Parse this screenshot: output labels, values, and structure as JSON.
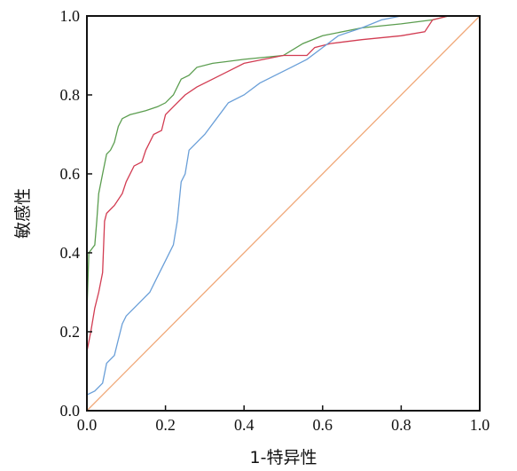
{
  "chart_data": {
    "type": "line",
    "xlabel": "1-特异性",
    "ylabel": "敏感性",
    "xlim": [
      0,
      1
    ],
    "ylim": [
      0,
      1
    ],
    "xticks": [
      "0.0",
      "0.2",
      "0.4",
      "0.6",
      "0.8",
      "1.0"
    ],
    "yticks": [
      "0.0",
      "0.2",
      "0.4",
      "0.6",
      "0.8",
      "1.0"
    ],
    "grid": false,
    "series": [
      {
        "color": "#5b9d4f",
        "points": [
          [
            0,
            0
          ],
          [
            0,
            0.25
          ],
          [
            0.005,
            0.4
          ],
          [
            0.02,
            0.42
          ],
          [
            0.025,
            0.48
          ],
          [
            0.03,
            0.55
          ],
          [
            0.04,
            0.6
          ],
          [
            0.05,
            0.65
          ],
          [
            0.06,
            0.66
          ],
          [
            0.07,
            0.68
          ],
          [
            0.08,
            0.72
          ],
          [
            0.09,
            0.74
          ],
          [
            0.11,
            0.75
          ],
          [
            0.15,
            0.76
          ],
          [
            0.18,
            0.77
          ],
          [
            0.2,
            0.78
          ],
          [
            0.22,
            0.8
          ],
          [
            0.24,
            0.84
          ],
          [
            0.26,
            0.85
          ],
          [
            0.28,
            0.87
          ],
          [
            0.32,
            0.88
          ],
          [
            0.4,
            0.89
          ],
          [
            0.5,
            0.9
          ],
          [
            0.55,
            0.93
          ],
          [
            0.6,
            0.95
          ],
          [
            0.7,
            0.97
          ],
          [
            0.8,
            0.98
          ],
          [
            0.88,
            0.99
          ],
          [
            0.92,
            1.0
          ],
          [
            1.0,
            1.0
          ]
        ]
      },
      {
        "color": "#d23c52",
        "points": [
          [
            0,
            0
          ],
          [
            0,
            0.15
          ],
          [
            0.01,
            0.2
          ],
          [
            0.02,
            0.26
          ],
          [
            0.03,
            0.3
          ],
          [
            0.04,
            0.35
          ],
          [
            0.045,
            0.48
          ],
          [
            0.05,
            0.5
          ],
          [
            0.07,
            0.52
          ],
          [
            0.09,
            0.55
          ],
          [
            0.1,
            0.58
          ],
          [
            0.12,
            0.62
          ],
          [
            0.14,
            0.63
          ],
          [
            0.15,
            0.66
          ],
          [
            0.17,
            0.7
          ],
          [
            0.19,
            0.71
          ],
          [
            0.2,
            0.75
          ],
          [
            0.22,
            0.77
          ],
          [
            0.25,
            0.8
          ],
          [
            0.28,
            0.82
          ],
          [
            0.32,
            0.84
          ],
          [
            0.36,
            0.86
          ],
          [
            0.4,
            0.88
          ],
          [
            0.45,
            0.89
          ],
          [
            0.5,
            0.9
          ],
          [
            0.56,
            0.9
          ],
          [
            0.58,
            0.92
          ],
          [
            0.62,
            0.93
          ],
          [
            0.7,
            0.94
          ],
          [
            0.8,
            0.95
          ],
          [
            0.86,
            0.96
          ],
          [
            0.88,
            0.99
          ],
          [
            0.92,
            1.0
          ],
          [
            1.0,
            1.0
          ]
        ]
      },
      {
        "color": "#6a9fd8",
        "points": [
          [
            0,
            0
          ],
          [
            0,
            0.04
          ],
          [
            0.02,
            0.05
          ],
          [
            0.04,
            0.07
          ],
          [
            0.05,
            0.12
          ],
          [
            0.07,
            0.14
          ],
          [
            0.08,
            0.18
          ],
          [
            0.09,
            0.22
          ],
          [
            0.1,
            0.24
          ],
          [
            0.12,
            0.26
          ],
          [
            0.14,
            0.28
          ],
          [
            0.16,
            0.3
          ],
          [
            0.18,
            0.34
          ],
          [
            0.2,
            0.38
          ],
          [
            0.22,
            0.42
          ],
          [
            0.23,
            0.48
          ],
          [
            0.24,
            0.58
          ],
          [
            0.25,
            0.6
          ],
          [
            0.26,
            0.66
          ],
          [
            0.28,
            0.68
          ],
          [
            0.3,
            0.7
          ],
          [
            0.33,
            0.74
          ],
          [
            0.36,
            0.78
          ],
          [
            0.4,
            0.8
          ],
          [
            0.44,
            0.83
          ],
          [
            0.48,
            0.85
          ],
          [
            0.52,
            0.87
          ],
          [
            0.56,
            0.89
          ],
          [
            0.6,
            0.92
          ],
          [
            0.64,
            0.95
          ],
          [
            0.7,
            0.97
          ],
          [
            0.75,
            0.99
          ],
          [
            0.8,
            1.0
          ],
          [
            1.0,
            1.0
          ]
        ]
      },
      {
        "color": "#f0a878",
        "points": [
          [
            0,
            0
          ],
          [
            1,
            1
          ]
        ]
      }
    ]
  }
}
